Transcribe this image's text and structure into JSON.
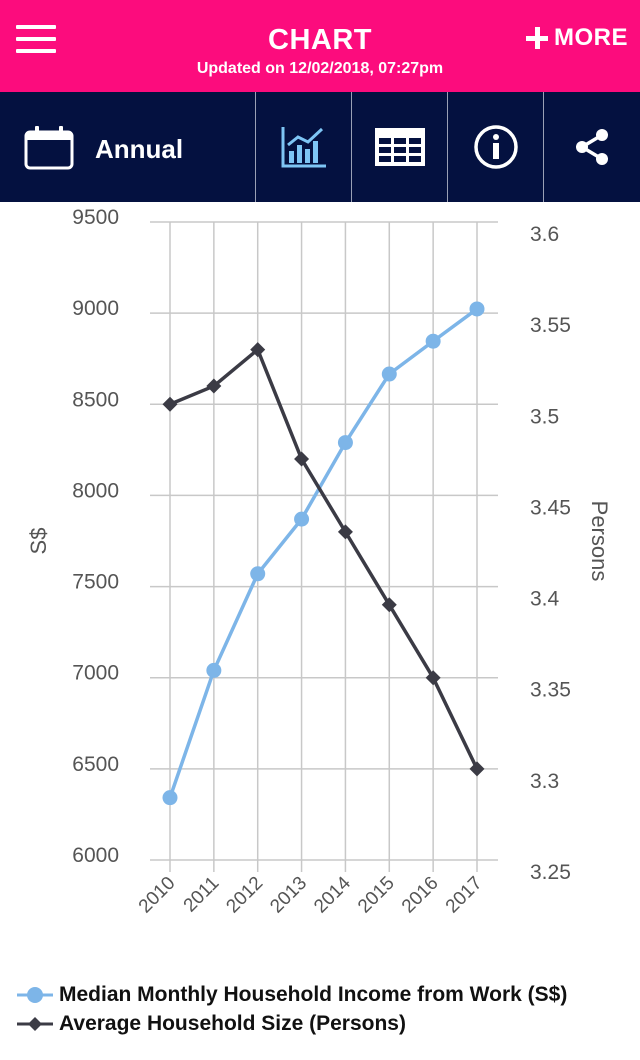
{
  "header": {
    "title": "CHART",
    "updated": "Updated on 12/02/2018, 07:27pm",
    "more_label": "MORE",
    "menu_icon": "hamburger-menu-icon",
    "more_icon": "plus-icon",
    "background": "#fc0c7d"
  },
  "toolbar": {
    "period_label": "Annual",
    "period_icon": "calendar-icon",
    "tools": [
      "chart-icon",
      "table-icon",
      "info-icon",
      "share-icon"
    ],
    "active_tool": "chart-icon",
    "background": "#041140",
    "active_color": "#7ec5f5"
  },
  "chart_data": {
    "type": "line",
    "title": "",
    "xlabel": "",
    "x": [
      "2010",
      "2011",
      "2012",
      "2013",
      "2014",
      "2015",
      "2016",
      "2017"
    ],
    "y_left": {
      "label": "S$",
      "ticks": [
        "6000",
        "6500",
        "7000",
        "7500",
        "8000",
        "8500",
        "9000",
        "9500"
      ],
      "range": [
        6000,
        9500
      ]
    },
    "y_right": {
      "label": "Persons",
      "ticks": [
        "3.25",
        "3.3",
        "3.35",
        "3.4",
        "3.45",
        "3.5",
        "3.55",
        "3.6"
      ],
      "range": [
        3.25,
        3.6
      ]
    },
    "series": [
      {
        "name": "Median Monthly Household Income from Work (S$)",
        "axis": "left",
        "marker": "circle",
        "color": "#7db5e8",
        "values": [
          6342,
          7040,
          7570,
          7870,
          8290,
          8666,
          8846,
          9023
        ]
      },
      {
        "name": "Average Household Size (Persons)",
        "axis": "right",
        "marker": "diamond",
        "color": "#3b3b45",
        "values": [
          3.5,
          3.51,
          3.53,
          3.47,
          3.43,
          3.39,
          3.35,
          3.3
        ]
      }
    ],
    "grid": true,
    "legend_position": "bottom-left"
  }
}
